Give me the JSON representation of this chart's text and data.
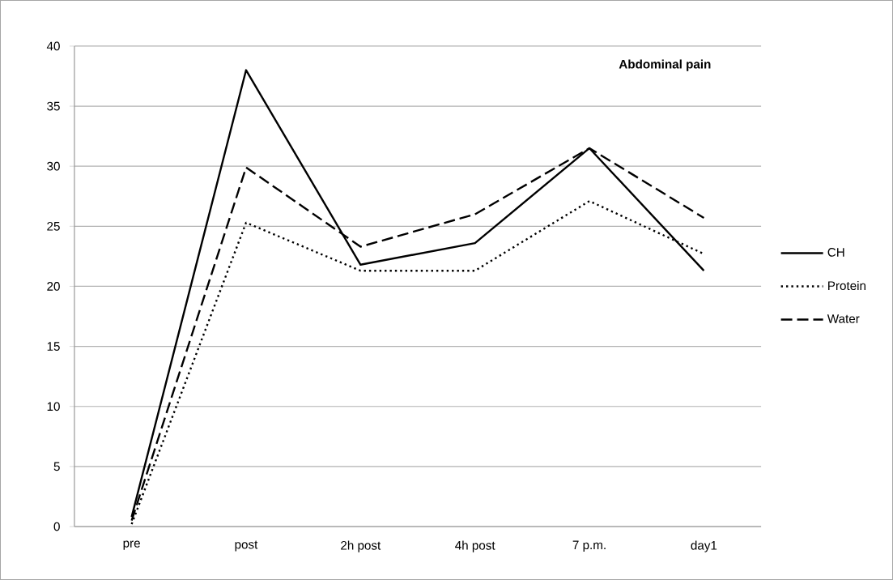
{
  "chart_data": {
    "type": "line",
    "title": "Abdominal pain",
    "categories": [
      "pre",
      "post",
      "2h post",
      "4h post",
      "7 p.m.",
      "day1"
    ],
    "series": [
      {
        "name": "CH",
        "color": "#000000",
        "line_style": "solid",
        "values": [
          0.8,
          38,
          21.8,
          23.6,
          31.5,
          21.3
        ]
      },
      {
        "name": "Protein",
        "color": "#000000",
        "line_style": "dotted",
        "values": [
          0.2,
          25.3,
          21.3,
          21.3,
          27.1,
          22.7
        ]
      },
      {
        "name": "Water",
        "color": "#000000",
        "line_style": "dashed",
        "values": [
          0.5,
          29.9,
          23.3,
          26,
          31.5,
          25.7
        ]
      }
    ],
    "ylim": [
      0,
      40
    ],
    "yticks": [
      0,
      5,
      10,
      15,
      20,
      25,
      30,
      35,
      40
    ],
    "grid": "y",
    "legend": "right",
    "marker": "none"
  }
}
